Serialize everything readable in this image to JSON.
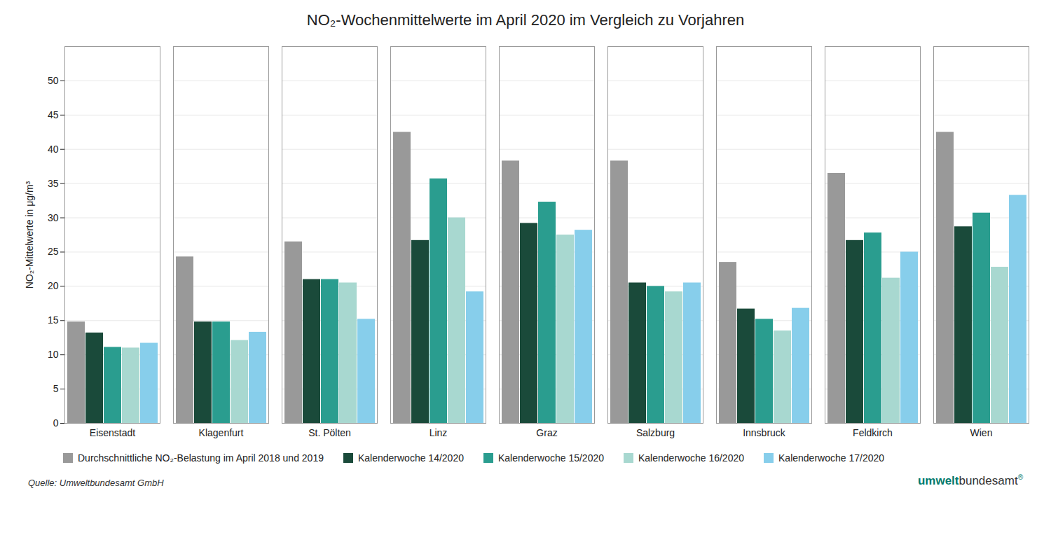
{
  "chart_data": {
    "type": "bar",
    "title": "NO₂-Wochenmittelwerte im April 2020 im Vergleich zu Vorjahren",
    "ylabel": "NO₂-Mittelwerte in μg/m³",
    "categories": [
      "Eisenstadt",
      "Klagenfurt",
      "St. Pölten",
      "Linz",
      "Graz",
      "Salzburg",
      "Innsbruck",
      "Feldkirch",
      "Wien"
    ],
    "series": [
      {
        "name": "Durchschnittliche NO₂-Belastung im April 2018 und 2019",
        "color": "#999999",
        "values": [
          14.8,
          24.3,
          26.5,
          42.5,
          38.3,
          38.3,
          23.5,
          36.5,
          42.5
        ]
      },
      {
        "name": "Kalenderwoche 14/2020",
        "color": "#1a4a3a",
        "values": [
          13.2,
          14.8,
          21.0,
          26.7,
          29.2,
          20.5,
          16.7,
          26.7,
          28.7
        ]
      },
      {
        "name": "Kalenderwoche 15/2020",
        "color": "#2a9d8f",
        "values": [
          11.1,
          14.8,
          21.0,
          35.7,
          32.3,
          20.0,
          15.2,
          27.8,
          30.7
        ]
      },
      {
        "name": "Kalenderwoche 16/2020",
        "color": "#a8d8d0",
        "values": [
          11.0,
          12.1,
          20.5,
          30.0,
          27.5,
          19.2,
          13.5,
          21.2,
          22.8
        ]
      },
      {
        "name": "Kalenderwoche 17/2020",
        "color": "#87ceeb",
        "values": [
          11.7,
          13.3,
          15.2,
          19.2,
          28.2,
          20.5,
          16.8,
          25.0,
          33.3
        ]
      }
    ],
    "ylim": [
      0,
      55
    ],
    "yticks": [
      0,
      5,
      10,
      15,
      20,
      25,
      30,
      35,
      40,
      45,
      50
    ],
    "grid": true,
    "legend": "bottom",
    "annotations": [
      "Quelle: Umweltbundesamt GmbH",
      "umwelt",
      "bundesamt",
      "®"
    ]
  }
}
